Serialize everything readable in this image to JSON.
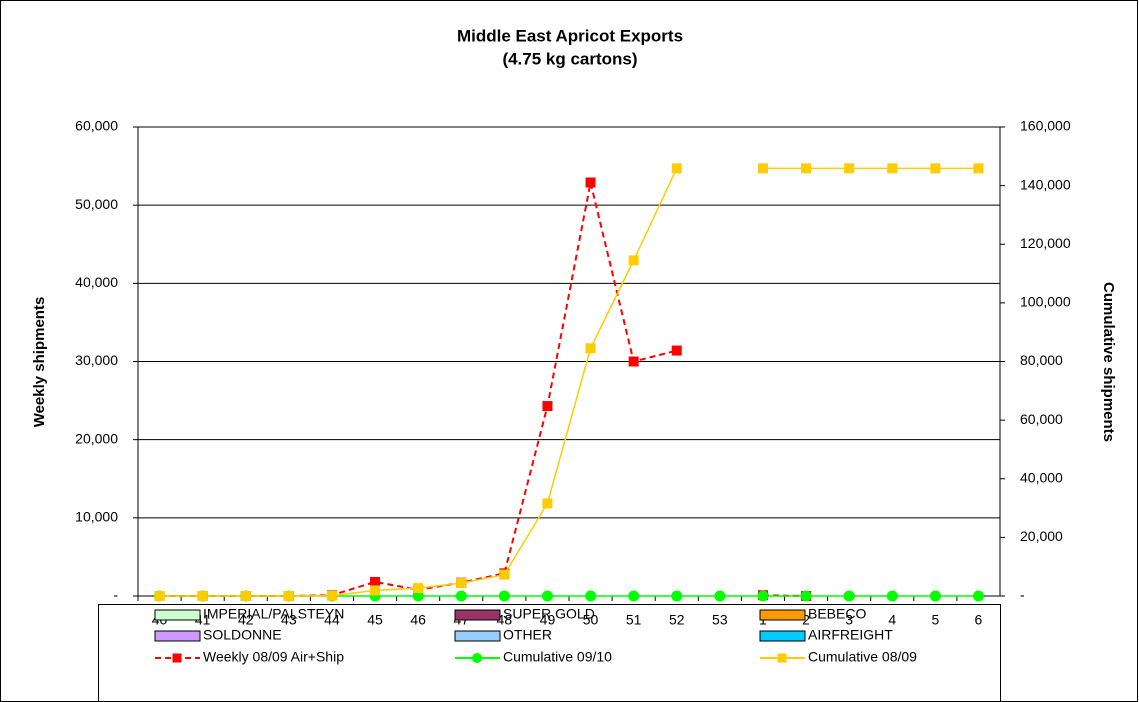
{
  "chart_data": {
    "type": "line",
    "title": "Middle East Apricot Exports",
    "subtitle": "(4.75 kg cartons)",
    "y_label": "Weekly shipments",
    "y2_label": "Cumulative shipments",
    "categories": [
      "40",
      "41",
      "42",
      "43",
      "44",
      "45",
      "46",
      "47",
      "48",
      "49",
      "50",
      "51",
      "52",
      "53",
      "1",
      "2",
      "3",
      "4",
      "5",
      "6"
    ],
    "ylim": [
      0,
      60000
    ],
    "yticks": [
      {
        "value": 0,
        "label": "-"
      },
      {
        "value": 10000,
        "label": "10,000"
      },
      {
        "value": 20000,
        "label": "20,000"
      },
      {
        "value": 30000,
        "label": "30,000"
      },
      {
        "value": 40000,
        "label": "40,000"
      },
      {
        "value": 50000,
        "label": "50,000"
      },
      {
        "value": 60000,
        "label": "60,000"
      }
    ],
    "y2lim": [
      0,
      160000
    ],
    "y2ticks": [
      {
        "value": 0,
        "label": "-"
      },
      {
        "value": 20000,
        "label": "20,000"
      },
      {
        "value": 40000,
        "label": "40,000"
      },
      {
        "value": 60000,
        "label": "60,000"
      },
      {
        "value": 80000,
        "label": "80,000"
      },
      {
        "value": 100000,
        "label": "100,000"
      },
      {
        "value": 120000,
        "label": "120,000"
      },
      {
        "value": 140000,
        "label": "140,000"
      },
      {
        "value": 160000,
        "label": "160,000"
      }
    ],
    "grid": true,
    "legend": "bottom",
    "series": [
      {
        "name": "IMPERIAL/PALSTEYN",
        "type": "bar",
        "color": "#ccffcc",
        "values": [
          0,
          0,
          0,
          0,
          0,
          0,
          0,
          0,
          0,
          0,
          0,
          0,
          0,
          0,
          0,
          0,
          0,
          0,
          0,
          0
        ]
      },
      {
        "name": "SUPER GOLD",
        "type": "bar",
        "color": "#993366",
        "values": [
          0,
          0,
          0,
          0,
          0,
          0,
          0,
          0,
          0,
          0,
          0,
          0,
          0,
          0,
          0,
          0,
          0,
          0,
          0,
          0
        ]
      },
      {
        "name": "BEBECO",
        "type": "bar",
        "color": "#ff9900",
        "values": [
          0,
          0,
          0,
          0,
          0,
          0,
          0,
          0,
          0,
          0,
          0,
          0,
          0,
          0,
          0,
          0,
          0,
          0,
          0,
          0
        ]
      },
      {
        "name": "SOLDONNE",
        "type": "bar",
        "color": "#cc99ff",
        "values": [
          0,
          0,
          0,
          0,
          0,
          0,
          0,
          0,
          0,
          0,
          0,
          0,
          0,
          0,
          0,
          0,
          0,
          0,
          0,
          0
        ]
      },
      {
        "name": "OTHER",
        "type": "bar",
        "color": "#99ccff",
        "values": [
          0,
          0,
          0,
          0,
          0,
          0,
          0,
          0,
          0,
          0,
          0,
          0,
          0,
          0,
          0,
          0,
          0,
          0,
          0,
          0
        ]
      },
      {
        "name": "AIRFREIGHT",
        "type": "bar",
        "color": "#00ccff",
        "values": [
          0,
          0,
          0,
          0,
          0,
          0,
          0,
          0,
          0,
          0,
          0,
          0,
          0,
          0,
          0,
          0,
          0,
          0,
          0,
          0
        ]
      },
      {
        "name": "Weekly 08/09 Air+Ship",
        "type": "line",
        "color": "#ff0000",
        "dashed": true,
        "marker": "square",
        "values": [
          0,
          0,
          0,
          0,
          100,
          1800,
          800,
          1700,
          2900,
          24300,
          52900,
          30000,
          31400,
          null,
          100,
          0,
          null,
          null,
          null,
          null
        ]
      },
      {
        "name": "Cumulative 09/10",
        "type": "line",
        "color": "#00ff00",
        "marker": "circle",
        "axis": "y2",
        "values": [
          0,
          0,
          0,
          0,
          0,
          0,
          0,
          0,
          0,
          0,
          0,
          0,
          0,
          0,
          0,
          0,
          0,
          0,
          0,
          0
        ]
      },
      {
        "name": "Cumulative 08/09",
        "type": "line",
        "color": "#ffcc00",
        "marker": "square",
        "axis": "y2",
        "values": [
          0,
          0,
          0,
          0,
          100,
          1900,
          2700,
          4400,
          7300,
          31600,
          84500,
          114500,
          145900,
          null,
          145900,
          145900,
          145900,
          145900,
          145900,
          145900
        ]
      }
    ]
  }
}
